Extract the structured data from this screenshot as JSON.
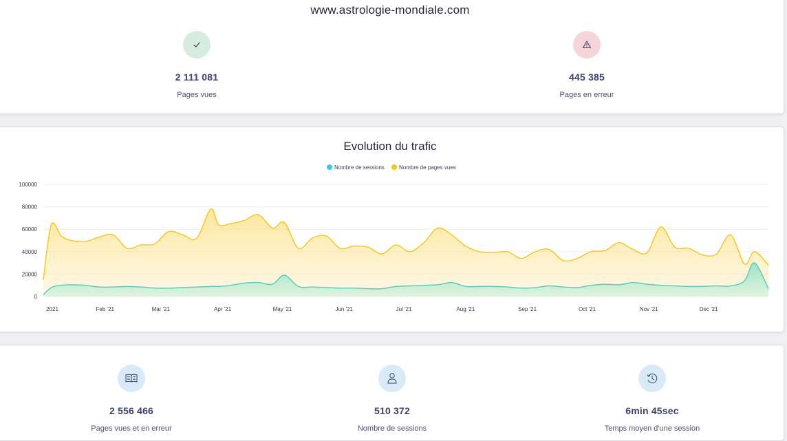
{
  "site": {
    "title": "www.astrologie-mondiale.com"
  },
  "top_stats": [
    {
      "value": "2 111 081",
      "label": "Pages vues",
      "icon": "check-icon",
      "bg": "#d6ecdc",
      "fg": "#3b3f6b"
    },
    {
      "value": "445 385",
      "label": "Pages en erreur",
      "icon": "warning-icon",
      "bg": "#f6d5d8",
      "fg": "#3b3f6b"
    }
  ],
  "bottom_stats": [
    {
      "value": "2 556 466",
      "label": "Pages vues et en erreur",
      "icon": "book-icon",
      "bg": "#d8eaf8"
    },
    {
      "value": "510 372",
      "label": "Nombre de sessions",
      "icon": "user-icon",
      "bg": "#d8eaf8"
    },
    {
      "value": "6min 45sec",
      "label": "Temps moyen d'une session",
      "icon": "clock-history-icon",
      "bg": "#d8eaf8"
    }
  ],
  "chart": {
    "title": "Evolution du trafic"
  },
  "chart_data": {
    "type": "area",
    "title": "Evolution du trafic",
    "ylim": [
      0,
      100000
    ],
    "yticks": [
      0,
      20000,
      40000,
      60000,
      80000,
      100000
    ],
    "xlim": [
      "2021-01-01",
      "2021-12-31"
    ],
    "xticks": [
      "2021",
      "Feb '21",
      "Mar '21",
      "Apr '21",
      "May '21",
      "Jun '21",
      "Jul '21",
      "Aug '21",
      "Sep '21",
      "Oct '21",
      "Nov '21",
      "Dec '21"
    ],
    "x": [
      "2021-01-01",
      "2021-01-05",
      "2021-01-10",
      "2021-01-15",
      "2021-01-22",
      "2021-01-29",
      "2021-02-05",
      "2021-02-12",
      "2021-02-19",
      "2021-02-26",
      "2021-03-05",
      "2021-03-12",
      "2021-03-19",
      "2021-03-26",
      "2021-03-30",
      "2021-04-05",
      "2021-04-12",
      "2021-04-19",
      "2021-04-26",
      "2021-05-02",
      "2021-05-09",
      "2021-05-16",
      "2021-05-23",
      "2021-05-30",
      "2021-06-06",
      "2021-06-13",
      "2021-06-20",
      "2021-06-27",
      "2021-07-04",
      "2021-07-11",
      "2021-07-18",
      "2021-07-25",
      "2021-08-01",
      "2021-08-08",
      "2021-08-15",
      "2021-08-22",
      "2021-08-29",
      "2021-09-05",
      "2021-09-12",
      "2021-09-19",
      "2021-09-26",
      "2021-10-03",
      "2021-10-10",
      "2021-10-17",
      "2021-10-24",
      "2021-10-31",
      "2021-11-07",
      "2021-11-14",
      "2021-11-21",
      "2021-11-28",
      "2021-12-05",
      "2021-12-12",
      "2021-12-19",
      "2021-12-24",
      "2021-12-31"
    ],
    "series": [
      {
        "name": "Nombre de sessions",
        "color": "#3fc8e6",
        "values": [
          1500,
          8000,
          10000,
          10500,
          10000,
          8500,
          8500,
          9000,
          8500,
          7500,
          7500,
          8000,
          8500,
          9000,
          9000,
          10000,
          12000,
          12500,
          11000,
          19000,
          9000,
          8500,
          8000,
          7500,
          7500,
          7000,
          7000,
          9000,
          9500,
          10000,
          10500,
          12500,
          9000,
          9000,
          9000,
          8500,
          7500,
          8000,
          9500,
          8500,
          8000,
          10000,
          11000,
          10500,
          12500,
          11000,
          10000,
          9500,
          9000,
          9000,
          9500,
          9500,
          14000,
          30000,
          7000
        ]
      },
      {
        "name": "Nombre de pages vues",
        "color": "#fbc90e",
        "values": [
          15000,
          64000,
          54000,
          50000,
          49000,
          53000,
          55000,
          43000,
          46000,
          47000,
          58000,
          55000,
          52000,
          78000,
          64000,
          65000,
          68000,
          73000,
          61000,
          66000,
          43000,
          52000,
          54000,
          43000,
          45000,
          44000,
          38000,
          46000,
          40000,
          48000,
          61000,
          55000,
          45000,
          40000,
          39000,
          40000,
          34000,
          40000,
          42000,
          32000,
          34000,
          40000,
          41000,
          48000,
          42000,
          39000,
          62000,
          44000,
          43000,
          37000,
          38000,
          55000,
          29000,
          40000,
          28000
        ]
      }
    ],
    "legend": "top-center",
    "grid": true
  }
}
